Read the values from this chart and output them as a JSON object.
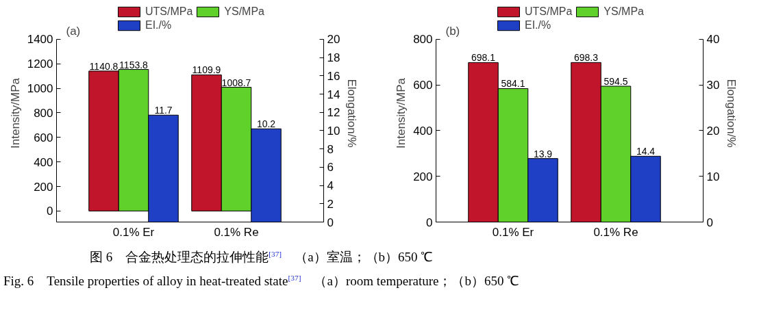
{
  "chart_data": [
    {
      "type": "bar",
      "categories": [
        "0.1% Er",
        "0.1% Re"
      ],
      "ylabel": "Intensity/MPa",
      "y2label": "Elongation/%",
      "ylim": [
        -90,
        1400
      ],
      "yticks": [
        0,
        200,
        400,
        600,
        800,
        1000,
        1200,
        1400
      ],
      "y2lim": [
        0,
        20
      ],
      "y2ticks": [
        0,
        2,
        4,
        6,
        8,
        10,
        12,
        14,
        16,
        18,
        20
      ],
      "legend": "top",
      "grid": false,
      "data_labels": true,
      "series": [
        {
          "name": "UTS/MPa",
          "color": "#c0152a",
          "values": [
            1140.8,
            1109.9
          ]
        },
        {
          "name": "YS/MPa",
          "color": "#5fd12a",
          "values": [
            1153.8,
            1008.7
          ]
        },
        {
          "name": "EI./%",
          "color": "#1f3fc4",
          "values": [
            11.7,
            10.2
          ],
          "axis": "y2"
        }
      ],
      "annotations": [
        "(a)",
        "图 6　合金热处理态的拉伸性能$^{[37]}$　（a）室温；（b）650 ℃",
        "Fig. 6　Tensile properties of alloy in heat-treated state$^{[37]}$　（a）room temperature；（b）650 ℃"
      ]
    },
    {
      "type": "bar",
      "categories": [
        "0.1% Er",
        "0.1% Re"
      ],
      "ylabel": "Intensity/MPa",
      "y2label": "Elongation/%",
      "ylim": [
        0,
        800
      ],
      "yticks": [
        0,
        200,
        400,
        600,
        800
      ],
      "y2lim": [
        0,
        40
      ],
      "y2ticks": [
        0,
        10,
        20,
        30,
        40
      ],
      "legend": "top",
      "grid": false,
      "data_labels": true,
      "series": [
        {
          "name": "UTS/MPa",
          "color": "#c0152a",
          "values": [
            698.1,
            698.3
          ]
        },
        {
          "name": "YS/MPa",
          "color": "#5fd12a",
          "values": [
            584.1,
            594.5
          ]
        },
        {
          "name": "EI./%",
          "color": "#1f3fc4",
          "values": [
            13.9,
            14.4
          ],
          "axis": "y2"
        }
      ],
      "annotations": [
        "(b)"
      ]
    }
  ]
}
